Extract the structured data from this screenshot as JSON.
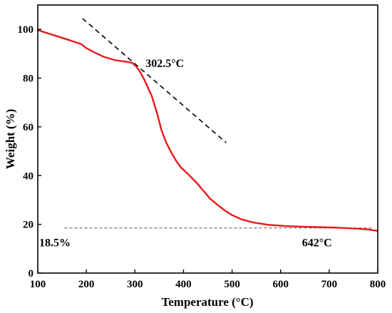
{
  "chart_data": {
    "type": "line",
    "title": "",
    "xlabel": "Temperature (°C)",
    "ylabel": "Weight (%)",
    "xlim": [
      100,
      800
    ],
    "ylim": [
      0,
      110
    ],
    "x_ticks": [
      100,
      200,
      300,
      400,
      500,
      600,
      700,
      800
    ],
    "y_ticks": [
      0,
      20,
      40,
      60,
      80,
      100
    ],
    "grid": false,
    "legend": "none",
    "series": [
      {
        "color": "#e8191a",
        "x": [
          100,
          130,
          160,
          190,
          200,
          215,
          235,
          260,
          280,
          295,
          302.5,
          310,
          320,
          335,
          345,
          355,
          365,
          375,
          385,
          395,
          410,
          425,
          440,
          455,
          470,
          485,
          500,
          520,
          545,
          575,
          610,
          650,
          690,
          720,
          750,
          780,
          800
        ],
        "y": [
          99.7,
          97.8,
          95.9,
          93.9,
          92.3,
          90.7,
          88.8,
          87.3,
          86.8,
          86.2,
          84.8,
          82.8,
          79.1,
          72.5,
          66.0,
          58.5,
          53.3,
          49.5,
          46.0,
          43.3,
          40.5,
          37.5,
          34.0,
          30.5,
          28.0,
          25.7,
          23.8,
          22.0,
          20.7,
          19.8,
          19.3,
          19.0,
          18.8,
          18.6,
          18.3,
          17.9,
          17.3
        ]
      }
    ],
    "reference_lines": [
      {
        "style": "dashed",
        "color": "#000000",
        "from": [
          192,
          104.5
        ],
        "to": [
          488,
          53.5
        ]
      },
      {
        "style": "dashed",
        "color": "#555555",
        "from": [
          155,
          18.5
        ],
        "to": [
          790,
          18.5
        ]
      }
    ],
    "annotations": [
      {
        "text": "302.5°C",
        "x": 322,
        "y": 84.5
      },
      {
        "text": "18.5%",
        "x": 103,
        "y": 11
      },
      {
        "text": "642°C",
        "x": 644,
        "y": 11
      }
    ]
  }
}
